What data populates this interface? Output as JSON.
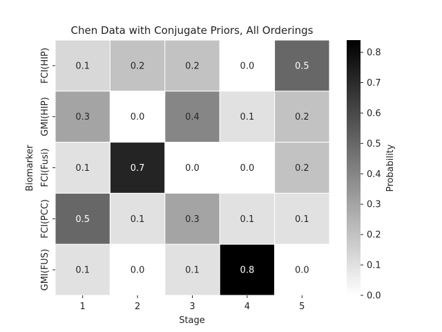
{
  "chart_data": {
    "type": "heatmap",
    "title": "Chen Data with Conjugate Priors, All Orderings",
    "xlabel": "Stage",
    "ylabel": "Biomarker",
    "x_categories": [
      "1",
      "2",
      "3",
      "4",
      "5"
    ],
    "y_categories": [
      "FCI(HIP)",
      "GMI(HIP)",
      "FCI(Fusi)",
      "FCI(PCC)",
      "GMI(FUS)"
    ],
    "values": [
      [
        0.13,
        0.2,
        0.2,
        0.0,
        0.5
      ],
      [
        0.3,
        0.0,
        0.4,
        0.1,
        0.2
      ],
      [
        0.1,
        0.72,
        0.0,
        0.0,
        0.2
      ],
      [
        0.5,
        0.1,
        0.3,
        0.1,
        0.1
      ],
      [
        0.1,
        0.0,
        0.1,
        0.84,
        0.0
      ]
    ],
    "labels": [
      [
        "0.1",
        "0.2",
        "0.2",
        "0.0",
        "0.5"
      ],
      [
        "0.3",
        "0.0",
        "0.4",
        "0.1",
        "0.2"
      ],
      [
        "0.1",
        "0.7",
        "0.0",
        "0.0",
        "0.2"
      ],
      [
        "0.5",
        "0.1",
        "0.3",
        "0.1",
        "0.1"
      ],
      [
        "0.1",
        "0.0",
        "0.1",
        "0.8",
        "0.0"
      ]
    ],
    "colorbar": {
      "label": "Probability",
      "range": [
        0.0,
        0.84
      ],
      "ticks": [
        "0.0",
        "0.1",
        "0.2",
        "0.3",
        "0.4",
        "0.5",
        "0.6",
        "0.7",
        "0.8"
      ]
    },
    "colormap": "white-to-black"
  }
}
